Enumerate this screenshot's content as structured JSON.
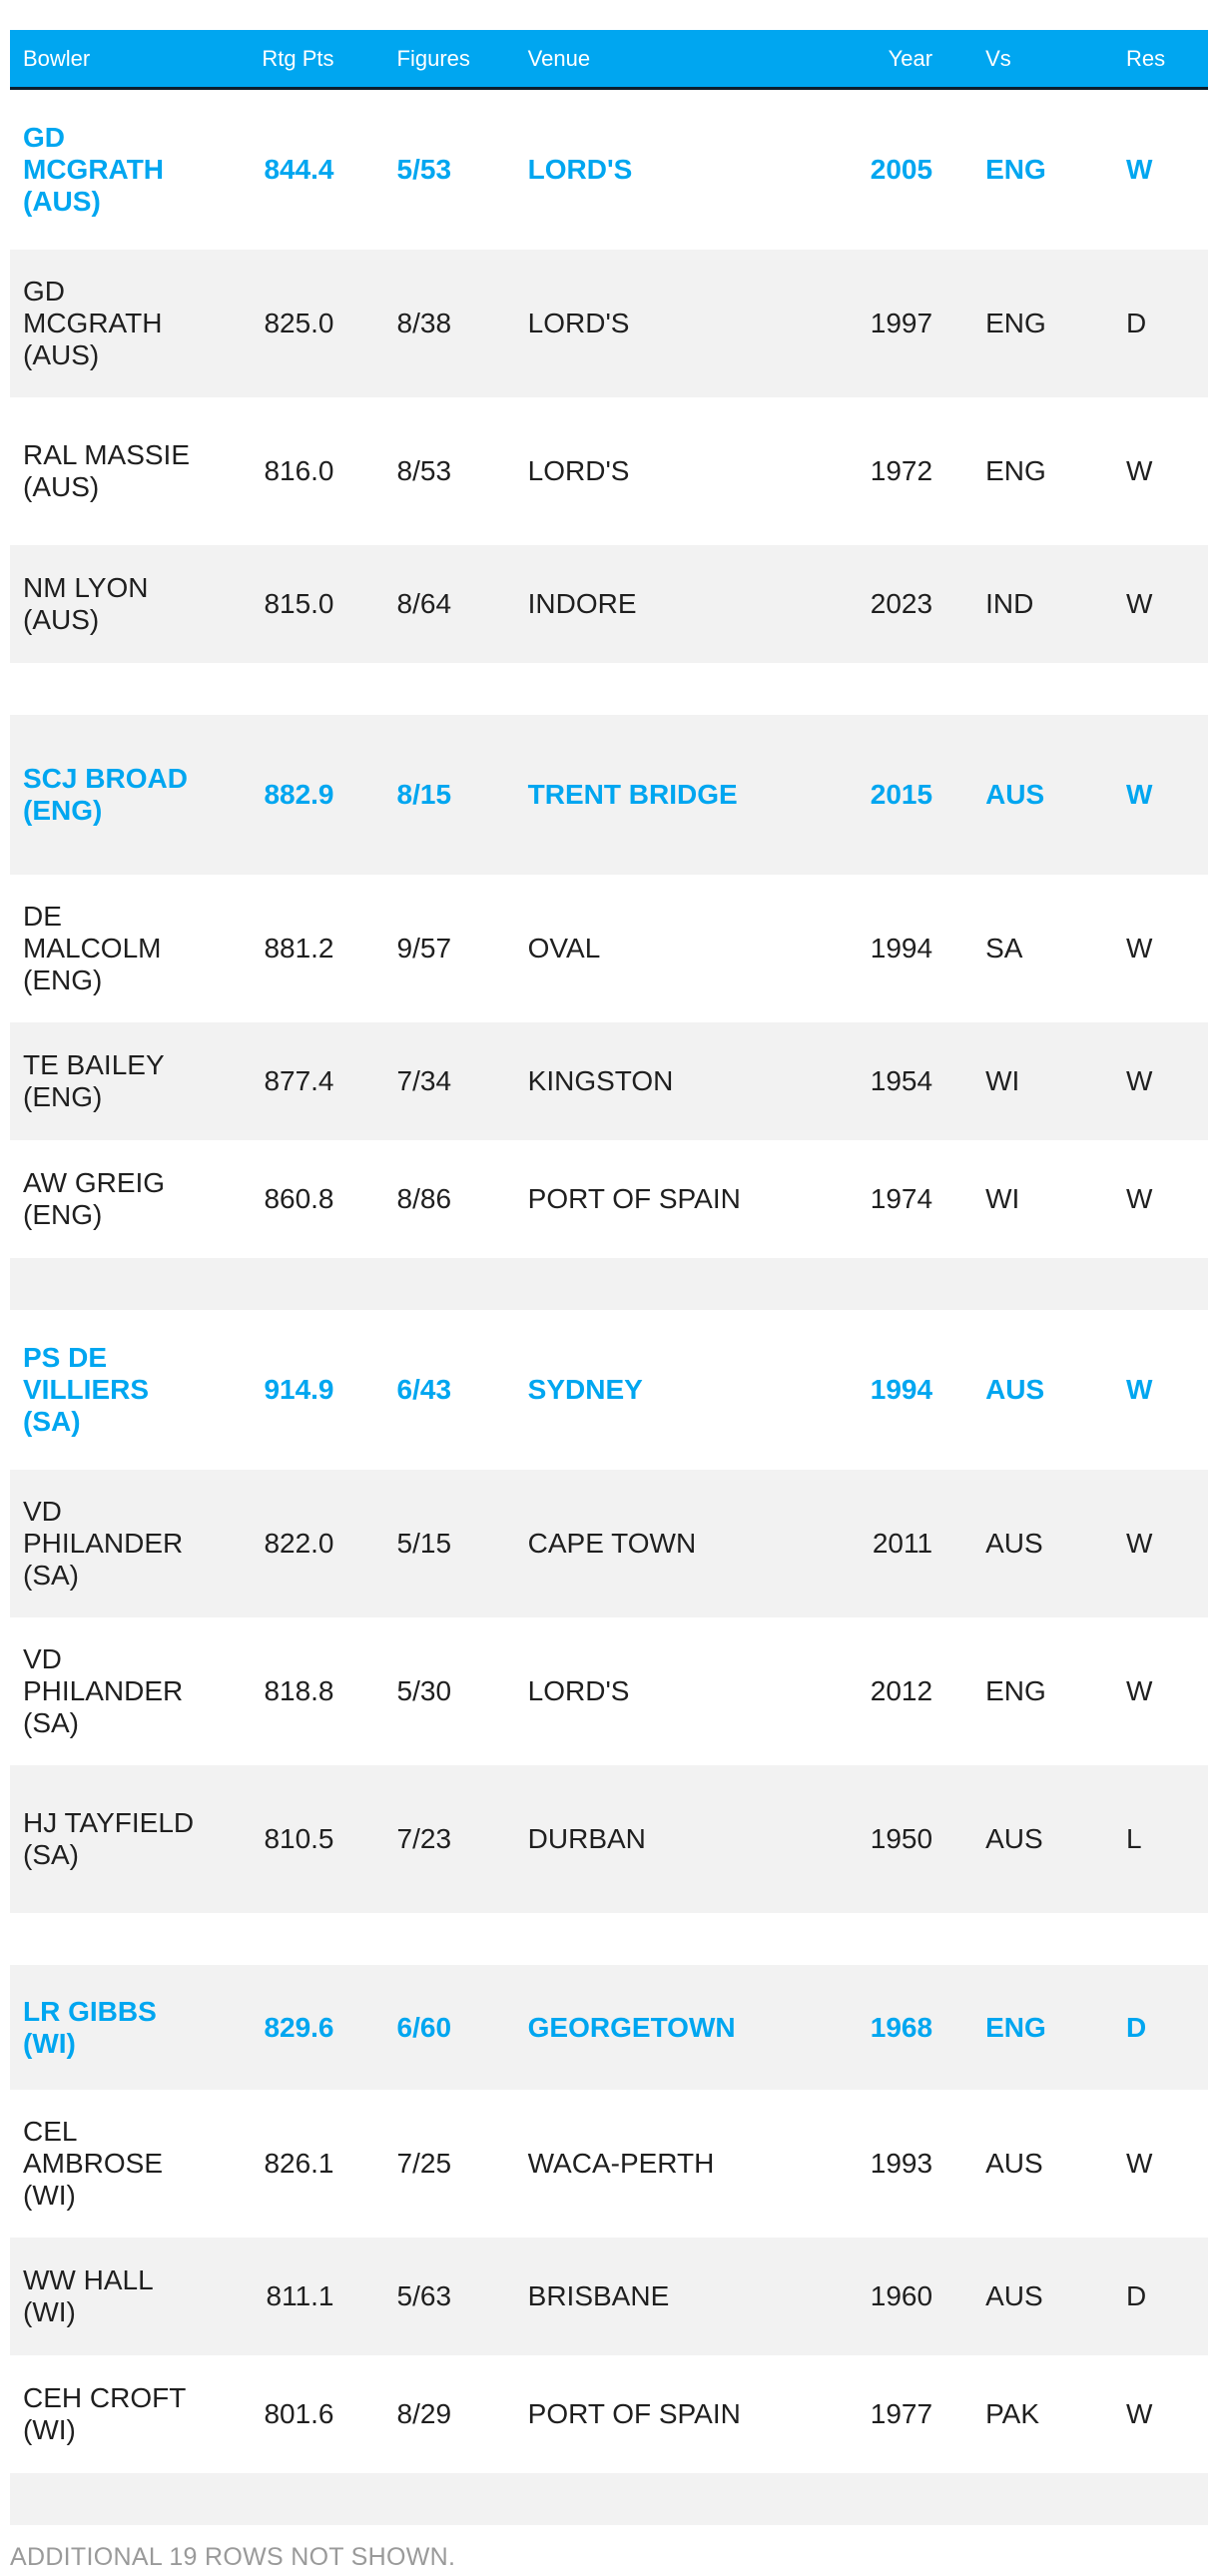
{
  "columns": {
    "bowler": "Bowler",
    "rtg": "Rtg Pts",
    "figures": "Figures",
    "venue": "Venue",
    "year": "Year",
    "vs": "Vs",
    "res": "Res"
  },
  "groups": [
    {
      "rows": [
        {
          "bowler": "GD MCGRATH (AUS)",
          "rtg": "844.4",
          "figures": "5/53",
          "venue": "LORD'S",
          "year": "2005",
          "vs": "ENG",
          "res": "W"
        },
        {
          "bowler": "GD MCGRATH (AUS)",
          "rtg": "825.0",
          "figures": "8/38",
          "venue": "LORD'S",
          "year": "1997",
          "vs": "ENG",
          "res": "D"
        },
        {
          "bowler": "RAL MASSIE (AUS)",
          "rtg": "816.0",
          "figures": "8/53",
          "venue": "LORD'S",
          "year": "1972",
          "vs": "ENG",
          "res": "W"
        },
        {
          "bowler": "NM LYON (AUS)",
          "rtg": "815.0",
          "figures": "8/64",
          "venue": "INDORE",
          "year": "2023",
          "vs": "IND",
          "res": "W"
        }
      ]
    },
    {
      "rows": [
        {
          "bowler": "SCJ BROAD (ENG)",
          "rtg": "882.9",
          "figures": "8/15",
          "venue": "TRENT BRIDGE",
          "year": "2015",
          "vs": "AUS",
          "res": "W"
        },
        {
          "bowler": "DE MALCOLM (ENG)",
          "rtg": "881.2",
          "figures": "9/57",
          "venue": "OVAL",
          "year": "1994",
          "vs": "SA",
          "res": "W"
        },
        {
          "bowler": "TE BAILEY (ENG)",
          "rtg": "877.4",
          "figures": "7/34",
          "venue": "KINGSTON",
          "year": "1954",
          "vs": "WI",
          "res": "W"
        },
        {
          "bowler": "AW GREIG (ENG)",
          "rtg": "860.8",
          "figures": "8/86",
          "venue": "PORT OF SPAIN",
          "year": "1974",
          "vs": "WI",
          "res": "W"
        }
      ]
    },
    {
      "rows": [
        {
          "bowler": "PS DE VILLIERS (SA)",
          "rtg": "914.9",
          "figures": "6/43",
          "venue": "SYDNEY",
          "year": "1994",
          "vs": "AUS",
          "res": "W"
        },
        {
          "bowler": "VD PHILANDER (SA)",
          "rtg": "822.0",
          "figures": "5/15",
          "venue": "CAPE TOWN",
          "year": "2011",
          "vs": "AUS",
          "res": "W"
        },
        {
          "bowler": "VD PHILANDER (SA)",
          "rtg": "818.8",
          "figures": "5/30",
          "venue": "LORD'S",
          "year": "2012",
          "vs": "ENG",
          "res": "W"
        },
        {
          "bowler": "HJ TAYFIELD (SA)",
          "rtg": "810.5",
          "figures": "7/23",
          "venue": "DURBAN",
          "year": "1950",
          "vs": "AUS",
          "res": "L"
        }
      ]
    },
    {
      "rows": [
        {
          "bowler": "LR GIBBS (WI)",
          "rtg": "829.6",
          "figures": "6/60",
          "venue": "GEORGETOWN",
          "year": "1968",
          "vs": "ENG",
          "res": "D"
        },
        {
          "bowler": "CEL AMBROSE (WI)",
          "rtg": "826.1",
          "figures": "7/25",
          "venue": "WACA-PERTH",
          "year": "1993",
          "vs": "AUS",
          "res": "W"
        },
        {
          "bowler": "WW HALL (WI)",
          "rtg": "811.1",
          "figures": "5/63",
          "venue": "BRISBANE",
          "year": "1960",
          "vs": "AUS",
          "res": "D"
        },
        {
          "bowler": "CEH CROFT (WI)",
          "rtg": "801.6",
          "figures": "8/29",
          "venue": "PORT OF SPAIN",
          "year": "1977",
          "vs": "PAK",
          "res": "W"
        }
      ]
    }
  ],
  "footnote": "ADDITIONAL 19 ROWS NOT SHOWN.",
  "colors": {
    "accent": "#00a6f0",
    "row_alt": "#f2f2f2",
    "header_border": "#0b1e2d",
    "footnote": "#9a9a9a"
  }
}
